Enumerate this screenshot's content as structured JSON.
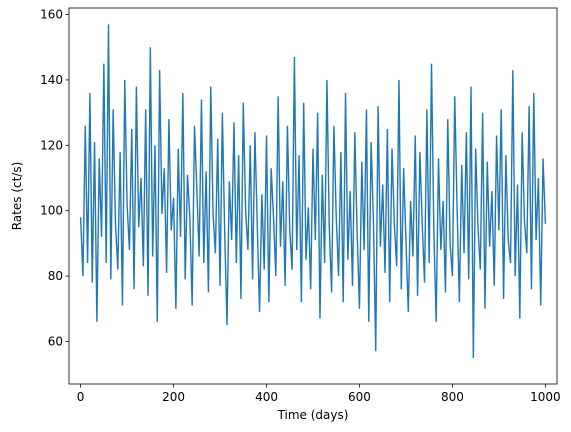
{
  "chart_data": {
    "type": "line",
    "title": "",
    "xlabel": "Time (days)",
    "ylabel": "Rates (ct/s)",
    "xlim": [
      -25,
      1025
    ],
    "ylim": [
      47,
      162
    ],
    "xticks": [
      0,
      200,
      400,
      600,
      800,
      1000
    ],
    "yticks": [
      60,
      80,
      100,
      120,
      140,
      160
    ],
    "xtick_labels": [
      "0",
      "200",
      "400",
      "600",
      "800",
      "1000"
    ],
    "ytick_labels": [
      "60",
      "80",
      "100",
      "120",
      "140",
      "160"
    ],
    "grid": false,
    "legend": "none",
    "series": [
      {
        "color": "#1f77b4",
        "x": [
          0,
          5,
          10,
          15,
          20,
          25,
          30,
          35,
          40,
          45,
          50,
          55,
          60,
          65,
          70,
          75,
          80,
          85,
          90,
          95,
          100,
          105,
          110,
          115,
          120,
          125,
          130,
          135,
          140,
          145,
          150,
          155,
          160,
          165,
          170,
          175,
          180,
          185,
          190,
          195,
          200,
          205,
          210,
          215,
          220,
          225,
          230,
          235,
          240,
          245,
          250,
          255,
          260,
          265,
          270,
          275,
          280,
          285,
          290,
          295,
          300,
          305,
          310,
          315,
          320,
          325,
          330,
          335,
          340,
          345,
          350,
          355,
          360,
          365,
          370,
          375,
          380,
          385,
          390,
          395,
          400,
          405,
          410,
          415,
          420,
          425,
          430,
          435,
          440,
          445,
          450,
          455,
          460,
          465,
          470,
          475,
          480,
          485,
          490,
          495,
          500,
          505,
          510,
          515,
          520,
          525,
          530,
          535,
          540,
          545,
          550,
          555,
          560,
          565,
          570,
          575,
          580,
          585,
          590,
          595,
          600,
          605,
          610,
          615,
          620,
          625,
          630,
          635,
          640,
          645,
          650,
          655,
          660,
          665,
          670,
          675,
          680,
          685,
          690,
          695,
          700,
          705,
          710,
          715,
          720,
          725,
          730,
          735,
          740,
          745,
          750,
          755,
          760,
          765,
          770,
          775,
          780,
          785,
          790,
          795,
          800,
          805,
          810,
          815,
          820,
          825,
          830,
          835,
          840,
          845,
          850,
          855,
          860,
          865,
          870,
          875,
          880,
          885,
          890,
          895,
          900,
          905,
          910,
          915,
          920,
          925,
          930,
          935,
          940,
          945,
          950,
          955,
          960,
          965,
          970,
          975,
          980,
          985,
          990,
          995,
          1000
        ],
        "y": [
          98,
          80,
          126,
          84,
          136,
          78,
          121,
          66,
          116,
          92,
          145,
          84,
          157,
          79,
          131,
          96,
          82,
          118,
          71,
          140,
          102,
          88,
          125,
          76,
          138,
          95,
          110,
          83,
          131,
          74,
          150,
          86,
          120,
          66,
          143,
          99,
          113,
          81,
          128,
          94,
          104,
          70,
          119,
          92,
          136,
          79,
          111,
          98,
          71,
          126,
          107,
          86,
          134,
          84,
          112,
          75,
          138,
          99,
          87,
          122,
          77,
          130,
          93,
          65,
          109,
          91,
          127,
          84,
          117,
          73,
          133,
          100,
          88,
          120,
          79,
          124,
          96,
          69,
          105,
          82,
          123,
          72,
          113,
          98,
          80,
          135,
          89,
          109,
          77,
          126,
          94,
          82,
          147,
          88,
          117,
          72,
          133,
          85,
          101,
          76,
          119,
          91,
          130,
          67,
          111,
          84,
          140,
          95,
          75,
          126,
          98,
          80,
          118,
          72,
          136,
          85,
          106,
          77,
          124,
          93,
          70,
          115,
          88,
          131,
          66,
          121,
          97,
          57,
          132,
          89,
          108,
          81,
          125,
          72,
          119,
          96,
          83,
          140,
          76,
          113,
          91,
          69,
          103,
          86,
          123,
          74,
          118,
          96,
          78,
          131,
          84,
          145,
          94,
          66,
          116,
          88,
          103,
          75,
          128,
          90,
          80,
          135,
          101,
          72,
          114,
          87,
          124,
          79,
          138,
          55,
          119,
          95,
          82,
          130,
          70,
          115,
          89,
          106,
          77,
          123,
          94,
          131,
          73,
          117,
          91,
          84,
          143,
          80,
          108,
          67,
          124,
          97,
          87,
          132,
          76,
          136,
          91,
          110,
          71,
          116,
          96
        ]
      }
    ]
  }
}
